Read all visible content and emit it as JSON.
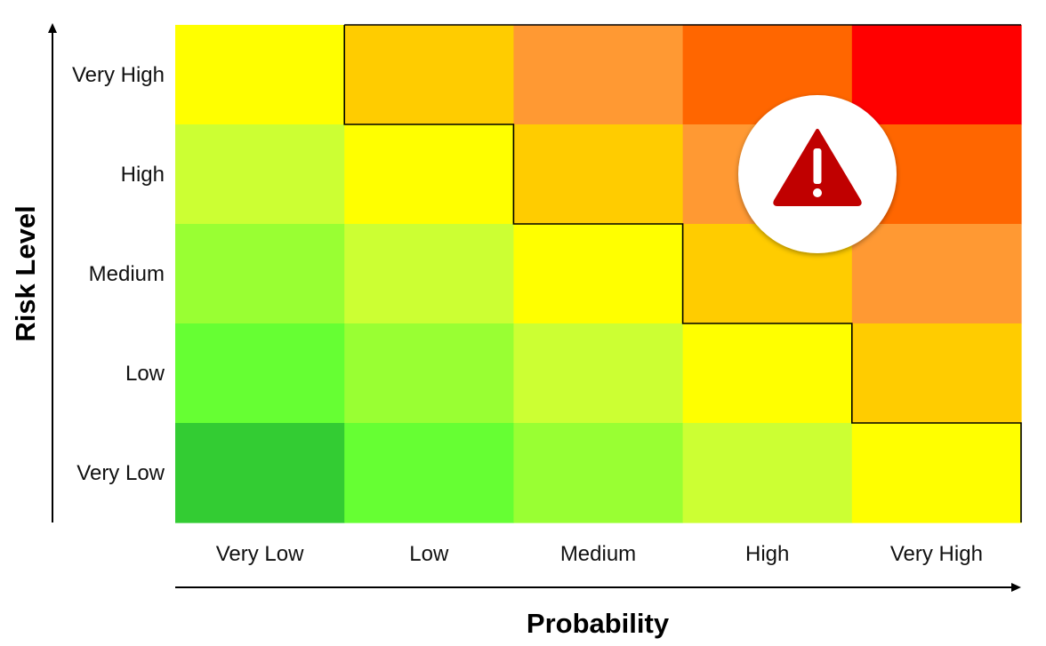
{
  "chart_data": {
    "type": "heatmap",
    "title": "",
    "xlabel": "Probability",
    "ylabel": "Risk Level",
    "x_categories": [
      "Very Low",
      "Low",
      "Medium",
      "High",
      "Very High"
    ],
    "y_categories": [
      "Very High",
      "High",
      "Medium",
      "Low",
      "Very Low"
    ],
    "cells": [
      [
        "#FFFF00",
        "#FFCC00",
        "#FF9933",
        "#FF6600",
        "#FF0000"
      ],
      [
        "#CCFF33",
        "#FFFF00",
        "#FFCC00",
        "#FF9933",
        "#FF6600"
      ],
      [
        "#99FF33",
        "#CCFF33",
        "#FFFF00",
        "#FFCC00",
        "#FF9933"
      ],
      [
        "#66FF33",
        "#99FF33",
        "#CCFF33",
        "#FFFF00",
        "#FFCC00"
      ],
      [
        "#33CC33",
        "#66FF33",
        "#99FF33",
        "#CCFF33",
        "#FFFF00"
      ]
    ],
    "boundary_steps": [
      1,
      2,
      3,
      4,
      5
    ],
    "legend": "none",
    "grid": false,
    "warning_icon": "warning-triangle-icon",
    "colors": {
      "boundary_line": "#000000",
      "axis_line": "#000000",
      "warning_triangle": "#C00000",
      "warning_badge": "#FFFFFF"
    }
  }
}
